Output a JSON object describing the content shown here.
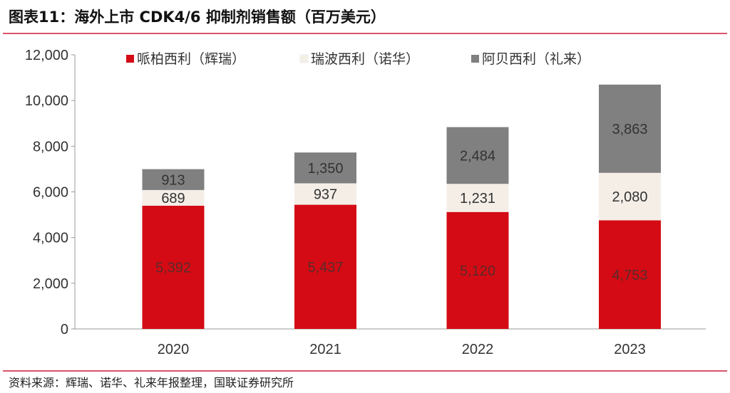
{
  "title": "图表11：海外上市 CDK4/6 抑制剂销售额（百万美元）",
  "source": "资料来源：辉瑞、诺华、礼来年报整理，国联证券研究所",
  "chart_data": {
    "type": "bar",
    "stacked": true,
    "title": "海外上市 CDK4/6 抑制剂销售额（百万美元）",
    "categories": [
      "2020",
      "2021",
      "2022",
      "2023"
    ],
    "series": [
      {
        "name": "哌柏西利（辉瑞）",
        "color": "#d40b14",
        "values": [
          5392,
          5437,
          5120,
          4753
        ],
        "labels": [
          "5,392",
          "5,437",
          "5,120",
          "4,753"
        ]
      },
      {
        "name": "瑞波西利（诺华）",
        "color": "#f4eee7",
        "values": [
          689,
          937,
          1231,
          2080
        ],
        "labels": [
          "689",
          "937",
          "1,231",
          "2,080"
        ]
      },
      {
        "name": "阿贝西利（礼来）",
        "color": "#808080",
        "values": [
          913,
          1350,
          2484,
          3863
        ],
        "labels": [
          "913",
          "1,350",
          "2,484",
          "3,863"
        ]
      }
    ],
    "ylim": [
      0,
      12000
    ],
    "yticks": [
      0,
      2000,
      4000,
      6000,
      8000,
      10000,
      12000
    ],
    "yticklabels": [
      "0",
      "2,000",
      "4,000",
      "6,000",
      "8,000",
      "10,000",
      "12,000"
    ],
    "legend": "top",
    "grid": false
  }
}
